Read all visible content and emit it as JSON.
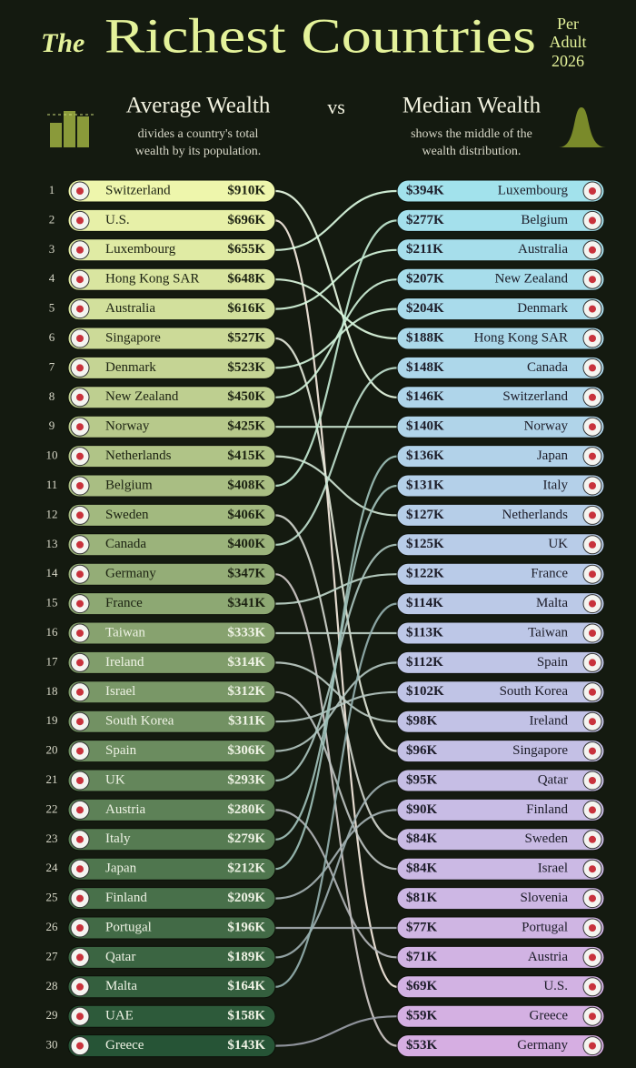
{
  "header": {
    "title_prefix": "The",
    "title": "Richest Countries",
    "per": "Per",
    "adult": "Adult",
    "year": "2026",
    "vs": "vs"
  },
  "left": {
    "heading": "Average Wealth",
    "desc_line1": "divides a country's total",
    "desc_line2": "wealth by its population.",
    "rows": [
      {
        "rank": "1",
        "country": "Switzerland",
        "value": "$910K"
      },
      {
        "rank": "2",
        "country": "U.S.",
        "value": "$696K"
      },
      {
        "rank": "3",
        "country": "Luxembourg",
        "value": "$655K"
      },
      {
        "rank": "4",
        "country": "Hong Kong SAR",
        "value": "$648K"
      },
      {
        "rank": "5",
        "country": "Australia",
        "value": "$616K"
      },
      {
        "rank": "6",
        "country": "Singapore",
        "value": "$527K"
      },
      {
        "rank": "7",
        "country": "Denmark",
        "value": "$523K"
      },
      {
        "rank": "8",
        "country": "New Zealand",
        "value": "$450K"
      },
      {
        "rank": "9",
        "country": "Norway",
        "value": "$425K"
      },
      {
        "rank": "10",
        "country": "Netherlands",
        "value": "$415K"
      },
      {
        "rank": "11",
        "country": "Belgium",
        "value": "$408K"
      },
      {
        "rank": "12",
        "country": "Sweden",
        "value": "$406K"
      },
      {
        "rank": "13",
        "country": "Canada",
        "value": "$400K"
      },
      {
        "rank": "14",
        "country": "Germany",
        "value": "$347K"
      },
      {
        "rank": "15",
        "country": "France",
        "value": "$341K"
      },
      {
        "rank": "16",
        "country": "Taiwan",
        "value": "$333K"
      },
      {
        "rank": "17",
        "country": "Ireland",
        "value": "$314K"
      },
      {
        "rank": "18",
        "country": "Israel",
        "value": "$312K"
      },
      {
        "rank": "19",
        "country": "South Korea",
        "value": "$311K"
      },
      {
        "rank": "20",
        "country": "Spain",
        "value": "$306K"
      },
      {
        "rank": "21",
        "country": "UK",
        "value": "$293K"
      },
      {
        "rank": "22",
        "country": "Austria",
        "value": "$280K"
      },
      {
        "rank": "23",
        "country": "Italy",
        "value": "$279K"
      },
      {
        "rank": "24",
        "country": "Japan",
        "value": "$212K"
      },
      {
        "rank": "25",
        "country": "Finland",
        "value": "$209K"
      },
      {
        "rank": "26",
        "country": "Portugal",
        "value": "$196K"
      },
      {
        "rank": "27",
        "country": "Qatar",
        "value": "$189K"
      },
      {
        "rank": "28",
        "country": "Malta",
        "value": "$164K"
      },
      {
        "rank": "29",
        "country": "UAE",
        "value": "$158K"
      },
      {
        "rank": "30",
        "country": "Greece",
        "value": "$143K"
      }
    ]
  },
  "right": {
    "heading": "Median Wealth",
    "desc_line1": "shows the middle of the",
    "desc_line2": "wealth distribution.",
    "rows": [
      {
        "value": "$394K",
        "country": "Luxembourg"
      },
      {
        "value": "$277K",
        "country": "Belgium"
      },
      {
        "value": "$211K",
        "country": "Australia"
      },
      {
        "value": "$207K",
        "country": "New Zealand"
      },
      {
        "value": "$204K",
        "country": "Denmark"
      },
      {
        "value": "$188K",
        "country": "Hong Kong SAR"
      },
      {
        "value": "$148K",
        "country": "Canada"
      },
      {
        "value": "$146K",
        "country": "Switzerland"
      },
      {
        "value": "$140K",
        "country": "Norway"
      },
      {
        "value": "$136K",
        "country": "Japan"
      },
      {
        "value": "$131K",
        "country": "Italy"
      },
      {
        "value": "$127K",
        "country": "Netherlands"
      },
      {
        "value": "$125K",
        "country": "UK"
      },
      {
        "value": "$122K",
        "country": "France"
      },
      {
        "value": "$114K",
        "country": "Malta"
      },
      {
        "value": "$113K",
        "country": "Taiwan"
      },
      {
        "value": "$112K",
        "country": "Spain"
      },
      {
        "value": "$102K",
        "country": "South Korea"
      },
      {
        "value": "$98K",
        "country": "Ireland"
      },
      {
        "value": "$96K",
        "country": "Singapore"
      },
      {
        "value": "$95K",
        "country": "Qatar"
      },
      {
        "value": "$90K",
        "country": "Finland"
      },
      {
        "value": "$84K",
        "country": "Sweden"
      },
      {
        "value": "$84K",
        "country": "Israel"
      },
      {
        "value": "$81K",
        "country": "Slovenia"
      },
      {
        "value": "$77K",
        "country": "Portugal"
      },
      {
        "value": "$71K",
        "country": "Austria"
      },
      {
        "value": "$69K",
        "country": "U.S."
      },
      {
        "value": "$59K",
        "country": "Greece"
      },
      {
        "value": "$53K",
        "country": "Germany"
      }
    ]
  }
}
